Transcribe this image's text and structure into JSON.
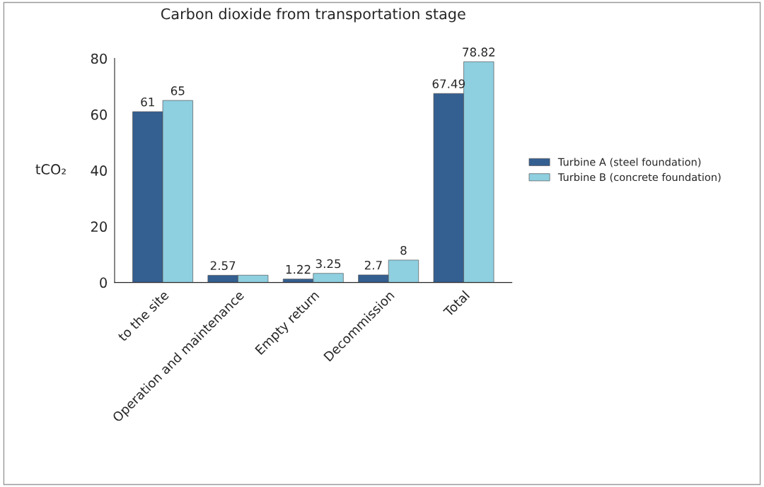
{
  "chart_data": {
    "type": "bar",
    "title": "Carbon dioxide from transportation stage",
    "ylabel": "tCO₂",
    "categories": [
      "to the site",
      "Operation and maintenance",
      "Empty return",
      "Decommission",
      "Total"
    ],
    "series": [
      {
        "name": "Turbine A (steel foundation)",
        "color": "#345f91",
        "values": [
          61,
          2.57,
          1.22,
          2.7,
          67.49
        ],
        "value_labels": [
          "61",
          "2.57",
          "1.22",
          "2.7",
          "67.49"
        ]
      },
      {
        "name": "Turbine B (concrete foundation)",
        "color": "#8ecfe0",
        "values": [
          65,
          2.6,
          3.25,
          8,
          78.82
        ],
        "value_labels": [
          "65",
          null,
          "3.25",
          "8",
          "78.82"
        ]
      }
    ],
    "ylim": [
      0,
      80
    ],
    "yticks": [
      0,
      20,
      40,
      60,
      80
    ],
    "grid": false,
    "legend": "right"
  }
}
